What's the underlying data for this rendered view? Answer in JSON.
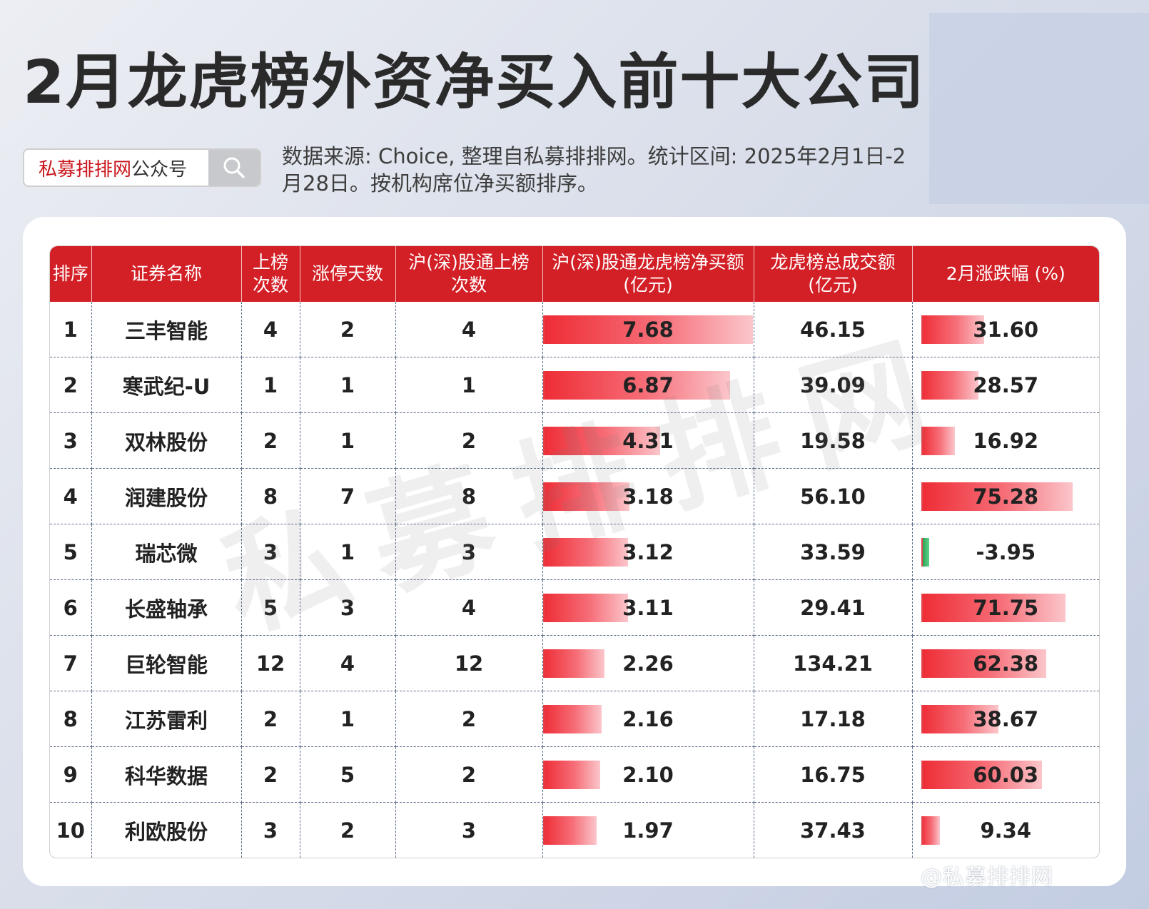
{
  "title": "2月龙虎榜外资净买入前十大公司",
  "brand": {
    "name": "私募排排网",
    "suffix": "公众号",
    "search_icon": "search-icon"
  },
  "source_note": "数据来源: Choice, 整理自私募排排网。统计区间: 2025年2月1日-2月28日。按机构席位净买额排序。",
  "watermark": "私募排排网",
  "footer_mark": "@私募排排网",
  "colors": {
    "header_red": "#d31f26",
    "bar_red": "#ee2c35",
    "bar_green": "#1f9b49"
  },
  "table": {
    "headers": [
      "排序",
      "证券名称",
      "上榜次数",
      "涨停天数",
      "沪(深)股通上榜次数",
      "沪(深)股通龙虎榜净买额(亿元)",
      "龙虎榜总成交额(亿元)",
      "2月涨跌幅 (%)"
    ],
    "header_lines": [
      [
        "排序"
      ],
      [
        "证券名称"
      ],
      [
        "上榜",
        "次数"
      ],
      [
        "涨停天数"
      ],
      [
        "沪(深)股通上榜",
        "次数"
      ],
      [
        "沪(深)股通龙虎榜净买额",
        "(亿元)"
      ],
      [
        "龙虎榜总成交额",
        "(亿元)"
      ],
      [
        "2月涨跌幅 (%)"
      ]
    ]
  },
  "chart_data": {
    "type": "table",
    "columns": [
      "排序",
      "证券名称",
      "上榜次数",
      "涨停天数",
      "沪(深)股通上榜次数",
      "沪(深)股通龙虎榜净买额(亿元)",
      "龙虎榜总成交额(亿元)",
      "2月涨跌幅 (%)"
    ],
    "rows": [
      [
        "1",
        "三丰智能",
        "4",
        "2",
        "4",
        "7.68",
        "46.15",
        "31.60"
      ],
      [
        "2",
        "寒武纪-U",
        "1",
        "1",
        "1",
        "6.87",
        "39.09",
        "28.57"
      ],
      [
        "3",
        "双林股份",
        "2",
        "1",
        "2",
        "4.31",
        "19.58",
        "16.92"
      ],
      [
        "4",
        "润建股份",
        "8",
        "7",
        "8",
        "3.18",
        "56.10",
        "75.28"
      ],
      [
        "5",
        "瑞芯微",
        "3",
        "1",
        "3",
        "3.12",
        "33.59",
        "-3.95"
      ],
      [
        "6",
        "长盛轴承",
        "5",
        "3",
        "4",
        "3.11",
        "29.41",
        "71.75"
      ],
      [
        "7",
        "巨轮智能",
        "12",
        "4",
        "12",
        "2.26",
        "134.21",
        "62.38"
      ],
      [
        "8",
        "江苏雷利",
        "2",
        "1",
        "2",
        "2.16",
        "17.18",
        "38.67"
      ],
      [
        "9",
        "科华数据",
        "2",
        "5",
        "2",
        "2.10",
        "16.75",
        "60.03"
      ],
      [
        "10",
        "利欧股份",
        "3",
        "2",
        "3",
        "1.97",
        "37.43",
        "9.34"
      ]
    ],
    "bar_columns": [
      5,
      7
    ]
  }
}
